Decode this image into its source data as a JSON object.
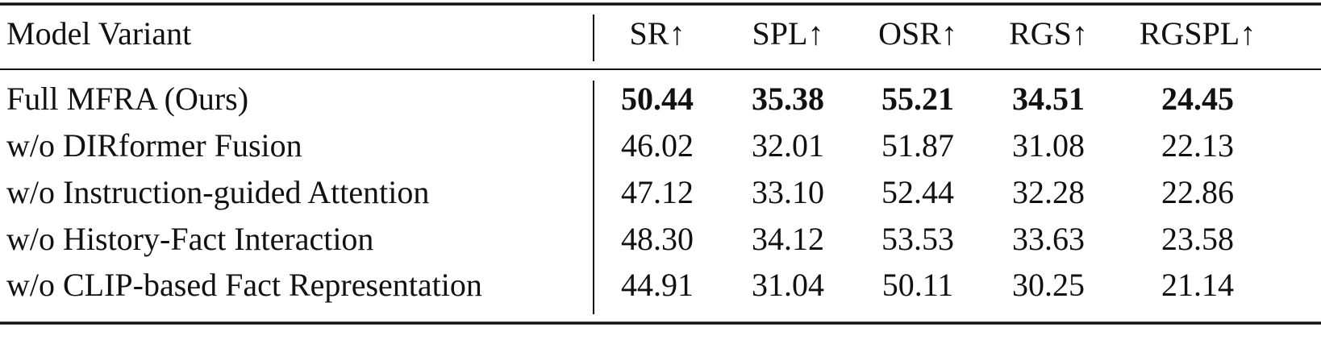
{
  "table": {
    "header": [
      "Model Variant",
      "SR↑",
      "SPL↑",
      "OSR↑",
      "RGS↑",
      "RGSPL↑"
    ],
    "rows": [
      [
        "Full MFRA (Ours)",
        "50.44",
        "35.38",
        "55.21",
        "34.51",
        "24.45"
      ],
      [
        "w/o DIRformer Fusion",
        "46.02",
        "32.01",
        "51.87",
        "31.08",
        "22.13"
      ],
      [
        "w/o Instruction-guided Attention",
        "47.12",
        "33.10",
        "52.44",
        "32.28",
        "22.86"
      ],
      [
        "w/o History-Fact Interaction",
        "48.30",
        "34.12",
        "53.53",
        "33.63",
        "23.58"
      ],
      [
        "w/o CLIP-based Fact Representation",
        "44.91",
        "31.04",
        "50.11",
        "30.25",
        "21.14"
      ]
    ]
  }
}
